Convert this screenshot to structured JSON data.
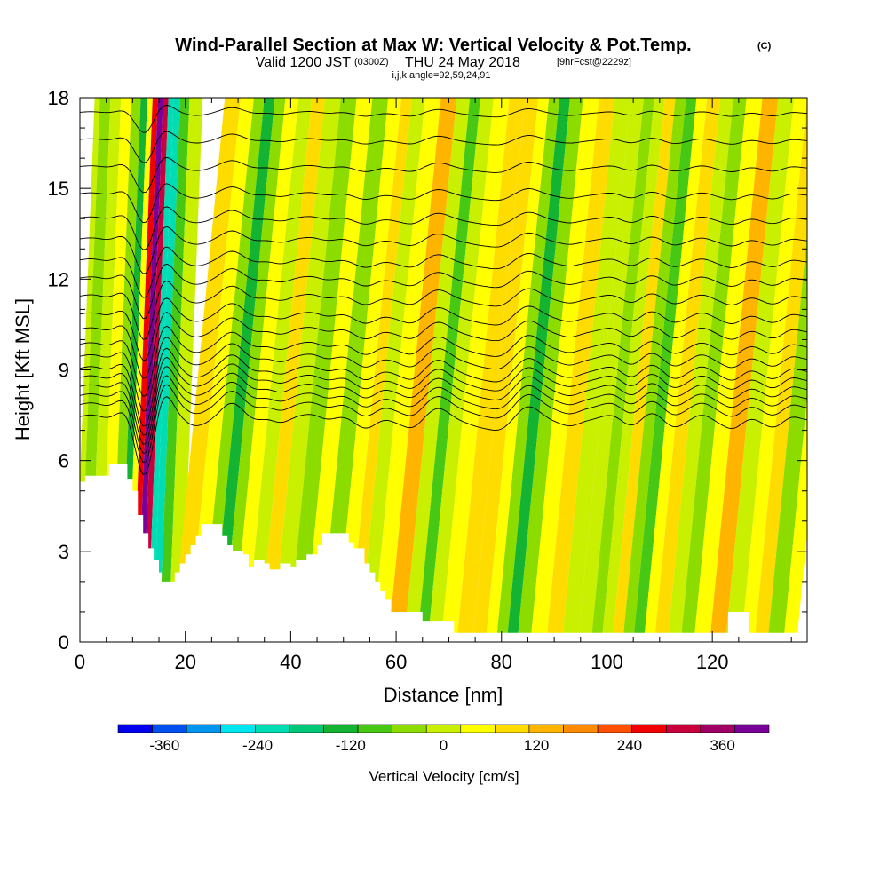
{
  "title": {
    "main": "Wind-Parallel Section at Max W: Vertical Velocity & Pot.Temp.",
    "copyright": "(C)",
    "valid_prefix": "Valid 1200 JST",
    "valid_utc": "(0300Z)",
    "valid_date": "THU 24 May 2018",
    "forecast": "[9hrFcst@2229z]",
    "indices": "i,j,k,angle=92,59,24,91"
  },
  "chart_data": {
    "type": "heatmap",
    "xlabel": "Distance [nm]",
    "ylabel": "Height [Kft MSL]",
    "xlim": [
      0,
      138
    ],
    "ylim": [
      0,
      18
    ],
    "x_ticks": [
      0,
      20,
      40,
      60,
      80,
      100,
      120
    ],
    "y_ticks": [
      0,
      3,
      6,
      9,
      12,
      15,
      18
    ],
    "grid": false,
    "colorbar": {
      "label": "Vertical Velocity [cm/s]",
      "tick_labels": [
        "-360",
        "-240",
        "-120",
        "0",
        "120",
        "240",
        "360"
      ],
      "tick_values": [
        -360,
        -240,
        -120,
        0,
        120,
        240,
        360
      ],
      "range": [
        -420,
        420
      ],
      "colors": [
        "#0000ee",
        "#0050f0",
        "#0096f0",
        "#00e6f0",
        "#00dcb4",
        "#00c878",
        "#14b432",
        "#46c814",
        "#8cdc00",
        "#c8f000",
        "#ffff00",
        "#ffdc00",
        "#ffb400",
        "#ff8c00",
        "#ff5000",
        "#f00000",
        "#c8003c",
        "#a00064",
        "#780096"
      ]
    },
    "velocity_columns": [
      {
        "x": 0,
        "w": 0
      },
      {
        "x": 2,
        "w": -40
      },
      {
        "x": 4,
        "w": -10
      },
      {
        "x": 6,
        "w": 30
      },
      {
        "x": 8,
        "w": -60
      },
      {
        "x": 9.5,
        "w": -140
      },
      {
        "x": 10.5,
        "w": 60
      },
      {
        "x": 11.5,
        "w": 260
      },
      {
        "x": 12.5,
        "w": 420
      },
      {
        "x": 13.5,
        "w": 300
      },
      {
        "x": 14.5,
        "w": -200
      },
      {
        "x": 15.5,
        "w": -230
      },
      {
        "x": 17,
        "w": -100
      },
      {
        "x": 19,
        "w": 20
      },
      {
        "x": 22,
        "w": 90
      },
      {
        "x": 25,
        "w": 30
      },
      {
        "x": 27,
        "w": -60
      },
      {
        "x": 29,
        "w": -150
      },
      {
        "x": 31,
        "w": -40
      },
      {
        "x": 33,
        "w": 40
      },
      {
        "x": 36,
        "w": -20
      },
      {
        "x": 38,
        "w": 70
      },
      {
        "x": 41,
        "w": -20
      },
      {
        "x": 44,
        "w": -50
      },
      {
        "x": 47,
        "w": 30
      },
      {
        "x": 50,
        "w": -30
      },
      {
        "x": 53,
        "w": 60
      },
      {
        "x": 55,
        "w": 100
      },
      {
        "x": 57,
        "w": -20
      },
      {
        "x": 60,
        "w": 40
      },
      {
        "x": 63,
        "w": 120
      },
      {
        "x": 66,
        "w": -20
      },
      {
        "x": 68,
        "w": -110
      },
      {
        "x": 70,
        "w": -20
      },
      {
        "x": 73,
        "w": 40
      },
      {
        "x": 76,
        "w": 90
      },
      {
        "x": 79,
        "w": 110
      },
      {
        "x": 81,
        "w": 60
      },
      {
        "x": 83,
        "w": -30
      },
      {
        "x": 85,
        "w": -120
      },
      {
        "x": 87,
        "w": -40
      },
      {
        "x": 90,
        "w": 30
      },
      {
        "x": 93,
        "w": 90
      },
      {
        "x": 96,
        "w": 20
      },
      {
        "x": 99,
        "w": 0
      },
      {
        "x": 101,
        "w": -50
      },
      {
        "x": 103,
        "w": 20
      },
      {
        "x": 105,
        "w": 100
      },
      {
        "x": 107,
        "w": -30
      },
      {
        "x": 109,
        "w": -70
      },
      {
        "x": 111,
        "w": 30
      },
      {
        "x": 113,
        "w": 100
      },
      {
        "x": 116,
        "w": 20
      },
      {
        "x": 118,
        "w": -60
      },
      {
        "x": 121,
        "w": 40
      },
      {
        "x": 124,
        "w": 130
      },
      {
        "x": 127,
        "w": -20
      },
      {
        "x": 130,
        "w": 40
      },
      {
        "x": 132,
        "w": 100
      },
      {
        "x": 135,
        "w": -40
      },
      {
        "x": 138,
        "w": 30
      }
    ],
    "terrain": [
      [
        0,
        5.3
      ],
      [
        1,
        5.5
      ],
      [
        5,
        5.5
      ],
      [
        5.5,
        5.9
      ],
      [
        8.5,
        5.9
      ],
      [
        9,
        5.4
      ],
      [
        10,
        5.0
      ],
      [
        11,
        4.2
      ],
      [
        12,
        3.6
      ],
      [
        13,
        3.1
      ],
      [
        14,
        2.7
      ],
      [
        15,
        2.3
      ],
      [
        15.5,
        2.0
      ],
      [
        17.5,
        2.0
      ],
      [
        18,
        2.3
      ],
      [
        19,
        2.6
      ],
      [
        20,
        2.9
      ],
      [
        21,
        3.2
      ],
      [
        22,
        3.5
      ],
      [
        23,
        3.9
      ],
      [
        26,
        3.9
      ],
      [
        27,
        3.5
      ],
      [
        28,
        3.2
      ],
      [
        29,
        3.0
      ],
      [
        31,
        2.9
      ],
      [
        32,
        2.5
      ],
      [
        33,
        2.7
      ],
      [
        35,
        2.6
      ],
      [
        36,
        2.4
      ],
      [
        38,
        2.6
      ],
      [
        40,
        2.5
      ],
      [
        41,
        2.7
      ],
      [
        43,
        2.9
      ],
      [
        45,
        3.2
      ],
      [
        46,
        3.6
      ],
      [
        50,
        3.6
      ],
      [
        51,
        3.3
      ],
      [
        52,
        3.1
      ],
      [
        54,
        2.6
      ],
      [
        55,
        2.3
      ],
      [
        56,
        2.0
      ],
      [
        57,
        1.7
      ],
      [
        58,
        1.4
      ],
      [
        59,
        1.0
      ],
      [
        64,
        1.0
      ],
      [
        65,
        0.7
      ],
      [
        70,
        0.7
      ],
      [
        71,
        0.3
      ],
      [
        122,
        0.3
      ],
      [
        123,
        1.0
      ],
      [
        126,
        1.0
      ],
      [
        127,
        0.3
      ],
      [
        138,
        0.3
      ]
    ],
    "isentropes": [
      {
        "base": 7.4,
        "amp": 1.0
      },
      {
        "base": 7.8,
        "amp": 1.0
      },
      {
        "base": 8.1,
        "amp": 1.0
      },
      {
        "base": 8.4,
        "amp": 1.0
      },
      {
        "base": 8.7,
        "amp": 1.0
      },
      {
        "base": 9.0,
        "amp": 1.0
      },
      {
        "base": 9.4,
        "amp": 0.95
      },
      {
        "base": 9.8,
        "amp": 0.9
      },
      {
        "base": 10.3,
        "amp": 0.85
      },
      {
        "base": 10.8,
        "amp": 0.8
      },
      {
        "base": 11.4,
        "amp": 0.75
      },
      {
        "base": 12.0,
        "amp": 0.7
      },
      {
        "base": 12.6,
        "amp": 0.65
      },
      {
        "base": 13.3,
        "amp": 0.6
      },
      {
        "base": 14.0,
        "amp": 0.55
      },
      {
        "base": 14.8,
        "amp": 0.5
      },
      {
        "base": 15.7,
        "amp": 0.45
      },
      {
        "base": 16.6,
        "amp": 0.4
      },
      {
        "base": 17.5,
        "amp": 0.35
      }
    ]
  }
}
